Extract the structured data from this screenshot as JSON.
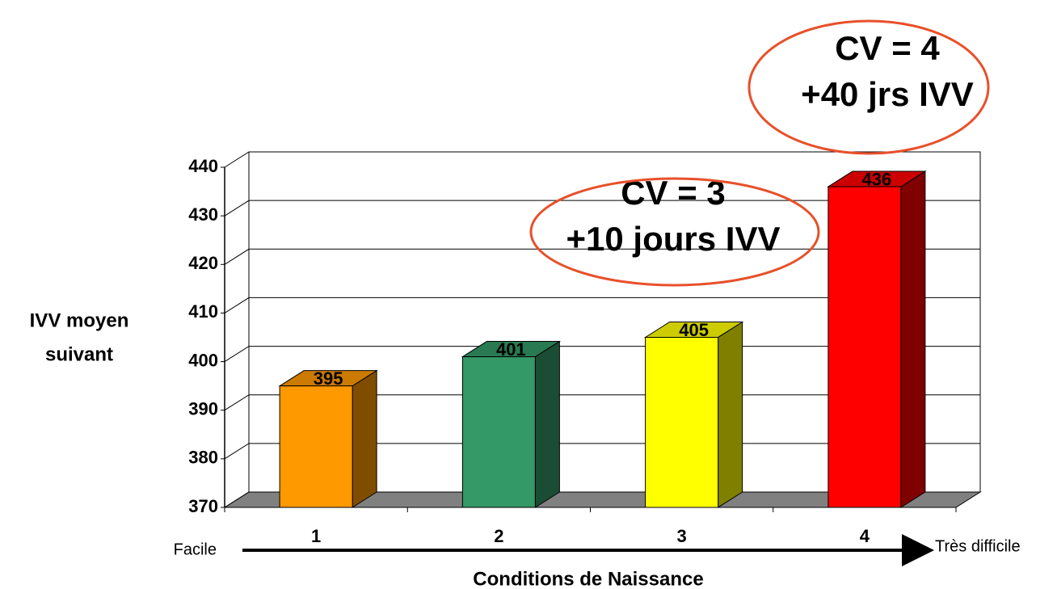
{
  "chart_data": {
    "type": "bar3d",
    "categories": [
      "1",
      "2",
      "3",
      "4"
    ],
    "values": [
      395,
      401,
      405,
      436
    ],
    "colors": [
      "#ff9900",
      "#339966",
      "#ffff00",
      "#ff0000"
    ],
    "ylim": [
      370,
      440
    ],
    "yticks": [
      370,
      380,
      390,
      400,
      410,
      420,
      430,
      440
    ],
    "grid": true,
    "y_label": [
      "IVV moyen",
      "suivant"
    ],
    "x_label": "Conditions de Naissance",
    "x_start_label": "Facile",
    "x_end_label": "Très difficile",
    "callouts": [
      {
        "lines": [
          "CV = 3",
          "+10 jours IVV"
        ]
      },
      {
        "lines": [
          "CV = 4",
          "+40 jrs IVV"
        ]
      }
    ]
  }
}
